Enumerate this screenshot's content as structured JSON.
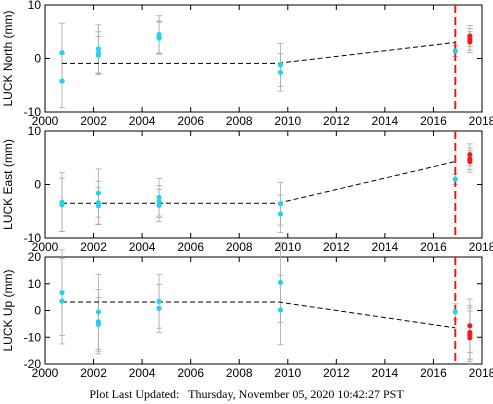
{
  "footer": {
    "label": "Plot Last Updated:",
    "timestamp": "Thursday, November 05, 2020 10:42:27 PST"
  },
  "colors": {
    "historical": "#22d3ee",
    "recent": "#ee1c1c",
    "errorbar": "#aaaaaa",
    "trend": "#000000",
    "event_line": "#ee1c1c"
  },
  "chart_data": [
    {
      "type": "scatter",
      "ylabel": "LUCK North (mm)",
      "xlim": [
        2000,
        2018
      ],
      "ylim": [
        -10,
        10
      ],
      "x_ticks": [
        2000,
        2002,
        2004,
        2006,
        2008,
        2010,
        2012,
        2014,
        2016,
        2018
      ],
      "y_ticks": [
        -10,
        0,
        10
      ],
      "event_line_x": 2016.9,
      "trend": [
        [
          2000.7,
          -0.9
        ],
        [
          2009.6,
          -0.9
        ],
        [
          2016.9,
          3.0
        ]
      ],
      "series": [
        {
          "color": "historical",
          "points": [
            [
              2000.7,
              1.1,
              5.5
            ],
            [
              2000.7,
              -4.2,
              5.0
            ],
            [
              2002.2,
              1.8,
              4.5
            ],
            [
              2002.2,
              1.0,
              4.0
            ],
            [
              2002.2,
              0.6,
              3.5
            ],
            [
              2004.7,
              4.5,
              3.5
            ],
            [
              2004.7,
              4.0,
              3.0
            ],
            [
              2004.7,
              3.8,
              3.0
            ],
            [
              2009.7,
              -1.2,
              4.0
            ],
            [
              2009.7,
              -2.6,
              3.5
            ],
            [
              2016.9,
              1.4,
              1.0
            ]
          ]
        },
        {
          "color": "recent",
          "points": [
            [
              2017.5,
              4.2,
              2.0
            ],
            [
              2017.5,
              3.6,
              2.0
            ],
            [
              2017.5,
              3.1,
              2.0
            ]
          ]
        }
      ]
    },
    {
      "type": "scatter",
      "ylabel": "LUCK East (mm)",
      "xlim": [
        2000,
        2018
      ],
      "ylim": [
        -10,
        10
      ],
      "x_ticks": [
        2000,
        2002,
        2004,
        2006,
        2008,
        2010,
        2012,
        2014,
        2016,
        2018
      ],
      "y_ticks": [
        -10,
        0,
        10
      ],
      "event_line_x": 2016.9,
      "trend": [
        [
          2000.7,
          -3.5
        ],
        [
          2009.6,
          -3.5
        ],
        [
          2016.9,
          4.3
        ]
      ],
      "series": [
        {
          "color": "historical",
          "points": [
            [
              2000.7,
              -3.3,
              5.5
            ],
            [
              2000.7,
              -3.8,
              5.0
            ],
            [
              2002.2,
              -1.6,
              4.5
            ],
            [
              2002.2,
              -3.4,
              4.0
            ],
            [
              2002.2,
              -4.0,
              3.5
            ],
            [
              2004.7,
              -2.4,
              3.5
            ],
            [
              2004.7,
              -3.2,
              3.0
            ],
            [
              2004.7,
              -3.9,
              3.0
            ],
            [
              2009.7,
              -3.6,
              4.0
            ],
            [
              2009.7,
              -5.5,
              3.5
            ],
            [
              2016.9,
              1.0,
              1.0
            ]
          ]
        },
        {
          "color": "recent",
          "points": [
            [
              2017.5,
              5.6,
              2.0
            ],
            [
              2017.5,
              4.8,
              2.0
            ],
            [
              2017.5,
              4.3,
              2.0
            ]
          ]
        }
      ]
    },
    {
      "type": "scatter",
      "ylabel": "LUCK Up (mm)",
      "xlim": [
        2000,
        2018
      ],
      "ylim": [
        -20,
        20
      ],
      "x_ticks": [
        2000,
        2002,
        2004,
        2006,
        2008,
        2010,
        2012,
        2014,
        2016,
        2018
      ],
      "y_ticks": [
        -20,
        -10,
        0,
        10,
        20
      ],
      "event_line_x": 2016.9,
      "trend": [
        [
          2000.7,
          3.2
        ],
        [
          2009.6,
          3.2
        ],
        [
          2016.9,
          -6.5
        ]
      ],
      "series": [
        {
          "color": "historical",
          "points": [
            [
              2000.7,
              6.7,
              16.0
            ],
            [
              2000.7,
              3.5,
              16.0
            ],
            [
              2002.2,
              -0.5,
              14.0
            ],
            [
              2002.2,
              -4.2,
              12.0
            ],
            [
              2002.2,
              -5.2,
              10.0
            ],
            [
              2004.7,
              3.4,
              10.0
            ],
            [
              2004.7,
              0.8,
              9.0
            ],
            [
              2009.7,
              10.5,
              15.0
            ],
            [
              2009.7,
              0.2,
              13.0
            ],
            [
              2016.9,
              -0.5,
              3.0
            ]
          ]
        },
        {
          "color": "recent",
          "points": [
            [
              2017.5,
              -5.7,
              10.0
            ],
            [
              2017.5,
              -8.2,
              10.0
            ],
            [
              2017.5,
              -9.0,
              10.0
            ],
            [
              2017.5,
              -10.2,
              10.0
            ]
          ]
        }
      ]
    }
  ]
}
